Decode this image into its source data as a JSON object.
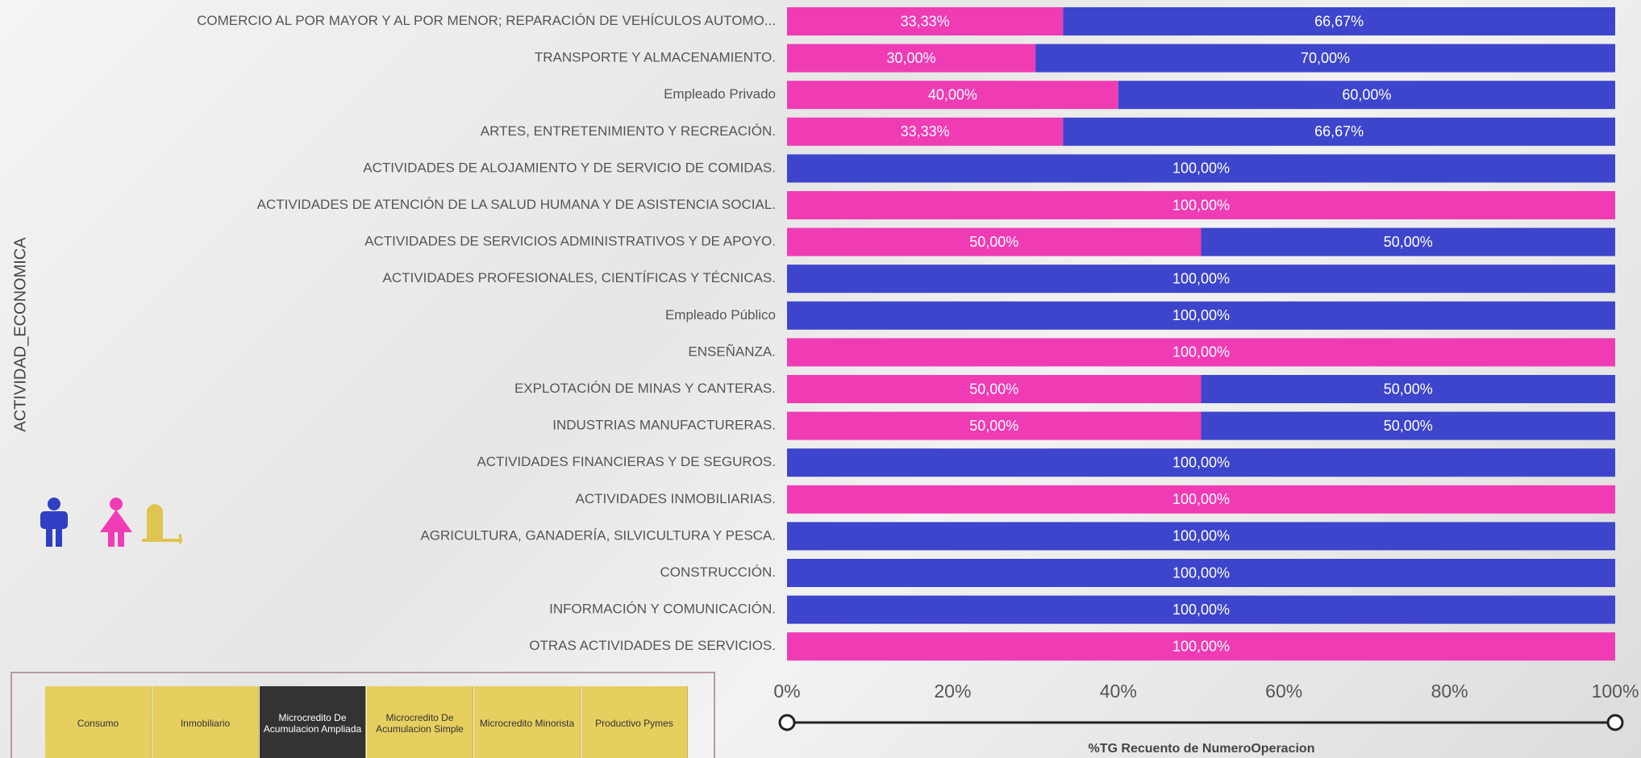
{
  "chart_data": {
    "type": "stacked_barh",
    "y_label": "ACTIVIDAD_ECONOMICA",
    "x_label": "%TG Recuento de NumeroOperacion",
    "categories": [
      "COMERCIO AL POR MAYOR Y AL POR MENOR; REPARACIÓN DE VEHÍCULOS AUTOMO...",
      "TRANSPORTE Y ALMACENAMIENTO.",
      "Empleado Privado",
      "ARTES, ENTRETENIMIENTO Y RECREACIÓN.",
      "ACTIVIDADES DE ALOJAMIENTO Y DE SERVICIO DE COMIDAS.",
      "ACTIVIDADES DE ATENCIÓN DE LA SALUD HUMANA Y DE ASISTENCIA SOCIAL.",
      "ACTIVIDADES DE SERVICIOS ADMINISTRATIVOS Y DE APOYO.",
      "ACTIVIDADES PROFESIONALES, CIENTÍFICAS Y TÉCNICAS.",
      "Empleado Público",
      "ENSEÑANZA.",
      "EXPLOTACIÓN DE MINAS Y CANTERAS.",
      "INDUSTRIAS MANUFACTURERAS.",
      "ACTIVIDADES FINANCIERAS Y DE SEGUROS.",
      "ACTIVIDADES INMOBILIARIAS.",
      "AGRICULTURA, GANADERÍA, SILVICULTURA Y PESCA.",
      "CONSTRUCCIÓN.",
      "INFORMACIÓN Y COMUNICACIÓN.",
      "OTRAS ACTIVIDADES DE SERVICIOS."
    ],
    "series": [
      {
        "color": "#f03cb4",
        "values": [
          33.33,
          30,
          40,
          33.33,
          0,
          100,
          50,
          0,
          0,
          100,
          50,
          50,
          0,
          100,
          0,
          0,
          0,
          100
        ],
        "value_labels": [
          "33,33%",
          "30,00%",
          "40,00%",
          "33,33%",
          null,
          "100,00%",
          "50,00%",
          null,
          null,
          "100,00%",
          "50,00%",
          "50,00%",
          null,
          "100,00%",
          null,
          null,
          null,
          "100,00%"
        ]
      },
      {
        "color": "#3d45cc",
        "values": [
          66.67,
          70,
          60,
          66.67,
          100,
          0,
          50,
          100,
          100,
          0,
          50,
          50,
          100,
          0,
          100,
          100,
          100,
          0
        ],
        "value_labels": [
          "66,67%",
          "70,00%",
          "60,00%",
          "66,67%",
          "100,00%",
          null,
          "50,00%",
          "100,00%",
          "100,00%",
          null,
          "50,00%",
          "50,00%",
          "100,00%",
          null,
          "100,00%",
          "100,00%",
          "100,00%",
          null
        ]
      }
    ],
    "xlim": [
      0,
      100
    ],
    "xticks": [
      {
        "value": 0,
        "label": "0%"
      },
      {
        "value": 20,
        "label": "20%"
      },
      {
        "value": 40,
        "label": "40%"
      },
      {
        "value": 60,
        "label": "60%"
      },
      {
        "value": 80,
        "label": "80%"
      },
      {
        "value": 100,
        "label": "100%"
      }
    ]
  },
  "slicer": {
    "options": [
      "Consumo",
      "Inmobiliario",
      "Microcredito De Acumulacion Ampliada",
      "Microcredito De Acumulacion Simple",
      "Microcredito Minorista",
      "Productivo Pymes"
    ],
    "selected": 2
  }
}
